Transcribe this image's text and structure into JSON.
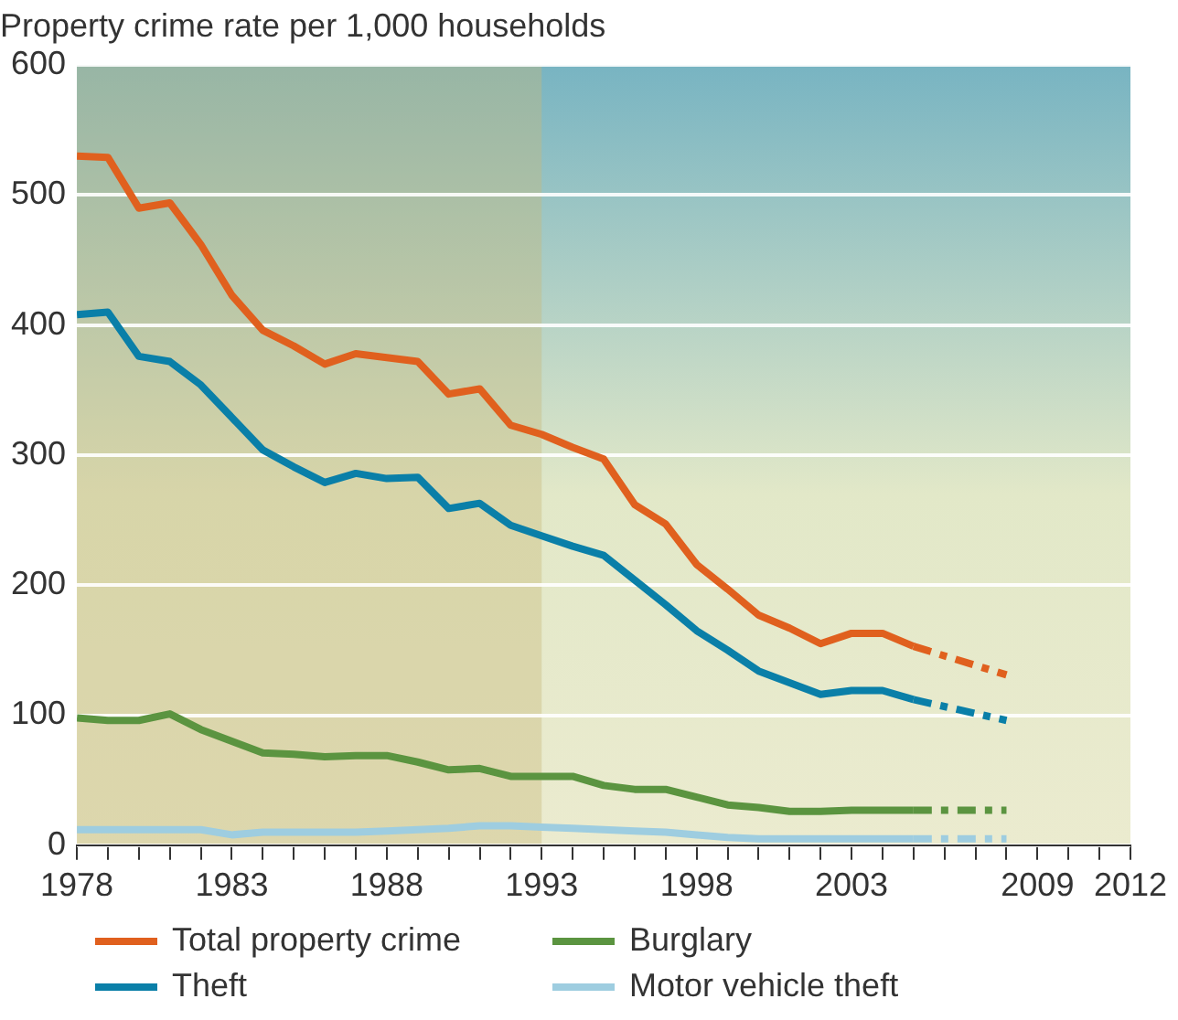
{
  "chart_data": {
    "type": "line",
    "title": "Property crime rate per 1,000 households",
    "xlim": [
      1978,
      2012
    ],
    "xticks": [
      1978,
      {
        "value": 1979,
        "label": null
      },
      {
        "value": 1980,
        "label": null
      },
      {
        "value": 1981,
        "label": null
      },
      {
        "value": 1982,
        "label": null
      },
      1983,
      {
        "value": 1984,
        "label": null
      },
      {
        "value": 1985,
        "label": null
      },
      {
        "value": 1986,
        "label": null
      },
      {
        "value": 1987,
        "label": null
      },
      1988,
      {
        "value": 1989,
        "label": null
      },
      {
        "value": 1990,
        "label": null
      },
      {
        "value": 1991,
        "label": null
      },
      {
        "value": 1992,
        "label": null
      },
      1993,
      {
        "value": 1994,
        "label": null
      },
      {
        "value": 1995,
        "label": null
      },
      {
        "value": 1996,
        "label": null
      },
      {
        "value": 1997,
        "label": null
      },
      1998,
      {
        "value": 1999,
        "label": null
      },
      {
        "value": 2000,
        "label": null
      },
      {
        "value": 2001,
        "label": null
      },
      {
        "value": 2002,
        "label": null
      },
      2003,
      {
        "value": 2004,
        "label": null
      },
      {
        "value": 2005,
        "label": null
      },
      {
        "value": 2006,
        "label": null
      },
      {
        "value": 2007,
        "label": null
      },
      {
        "value": 2008,
        "label": null
      },
      2009,
      {
        "value": 2010,
        "label": null
      },
      {
        "value": 2011,
        "label": null
      },
      2012
    ],
    "ylim": [
      0,
      600
    ],
    "yticks": [
      0,
      100,
      200,
      300,
      400,
      500,
      600
    ],
    "grid": "y",
    "legend": "bottom",
    "marker": "none",
    "bands": [
      {
        "axis": "x",
        "from": 1978,
        "to": 1993,
        "color": "#c9b97a"
      }
    ],
    "series": [
      {
        "name": "Total property crime",
        "color": "#e0601e",
        "line_style": "solid",
        "x": [
          1978,
          1979,
          1980,
          1981,
          1982,
          1983,
          1984,
          1985,
          1986,
          1987,
          1988,
          1989,
          1990,
          1991,
          1992,
          1993,
          1994,
          1995,
          1996,
          1997,
          1998,
          1999,
          2000,
          2001,
          2002,
          2003,
          2004,
          2005
        ],
        "values": [
          530,
          529,
          490,
          494,
          462,
          423,
          396,
          384,
          370,
          378,
          375,
          372,
          347,
          351,
          323,
          316,
          306,
          297,
          262,
          247,
          216,
          197,
          177,
          167,
          155,
          163,
          163,
          153
        ]
      },
      {
        "color": "#e0601e",
        "line_style": "dashed",
        "x": [
          2005,
          2008
        ],
        "values": [
          153,
          131
        ]
      },
      {
        "name": "Theft",
        "color": "#0a7fa8",
        "line_style": "solid",
        "x": [
          1978,
          1979,
          1980,
          1981,
          1982,
          1983,
          1984,
          1985,
          1986,
          1987,
          1988,
          1989,
          1990,
          1991,
          1992,
          1993,
          1994,
          1995,
          1996,
          1997,
          1998,
          1999,
          2000,
          2001,
          2002,
          2003,
          2004,
          2005
        ],
        "values": [
          408,
          410,
          376,
          372,
          354,
          329,
          304,
          291,
          279,
          286,
          282,
          283,
          259,
          263,
          246,
          238,
          230,
          223,
          204,
          185,
          165,
          150,
          134,
          125,
          116,
          119,
          119,
          112
        ]
      },
      {
        "color": "#0a7fa8",
        "line_style": "dashed",
        "x": [
          2005,
          2008
        ],
        "values": [
          112,
          96
        ]
      },
      {
        "name": "Burglary",
        "color": "#5b9440",
        "line_style": "solid",
        "x": [
          1978,
          1979,
          1980,
          1981,
          1982,
          1983,
          1984,
          1985,
          1986,
          1987,
          1988,
          1989,
          1990,
          1991,
          1992,
          1993,
          1994,
          1995,
          1996,
          1997,
          1998,
          1999,
          2000,
          2001,
          2002,
          2003,
          2004,
          2005
        ],
        "values": [
          98,
          96,
          96,
          101,
          89,
          80,
          71,
          70,
          68,
          69,
          69,
          64,
          58,
          59,
          53,
          53,
          53,
          46,
          43,
          43,
          37,
          31,
          29,
          26,
          26,
          27,
          27,
          27
        ]
      },
      {
        "color": "#5b9440",
        "line_style": "dashed",
        "x": [
          2005,
          2008
        ],
        "values": [
          27,
          27
        ]
      },
      {
        "name": "Motor vehicle theft",
        "color": "#9ecde0",
        "line_style": "solid",
        "x": [
          1978,
          1979,
          1980,
          1981,
          1982,
          1983,
          1984,
          1985,
          1986,
          1987,
          1988,
          1989,
          1990,
          1991,
          1992,
          1993,
          1994,
          1995,
          1996,
          1997,
          1998,
          1999,
          2000,
          2001,
          2002,
          2003,
          2004,
          2005
        ],
        "values": [
          12,
          12,
          12,
          12,
          12,
          8,
          10,
          10,
          10,
          10,
          11,
          12,
          13,
          15,
          15,
          14,
          13,
          12,
          11,
          10,
          8,
          6,
          5,
          5,
          5,
          5,
          5,
          5
        ]
      },
      {
        "color": "#9ecde0",
        "line_style": "dashed",
        "x": [
          2005,
          2008
        ],
        "values": [
          5,
          5
        ]
      }
    ]
  }
}
